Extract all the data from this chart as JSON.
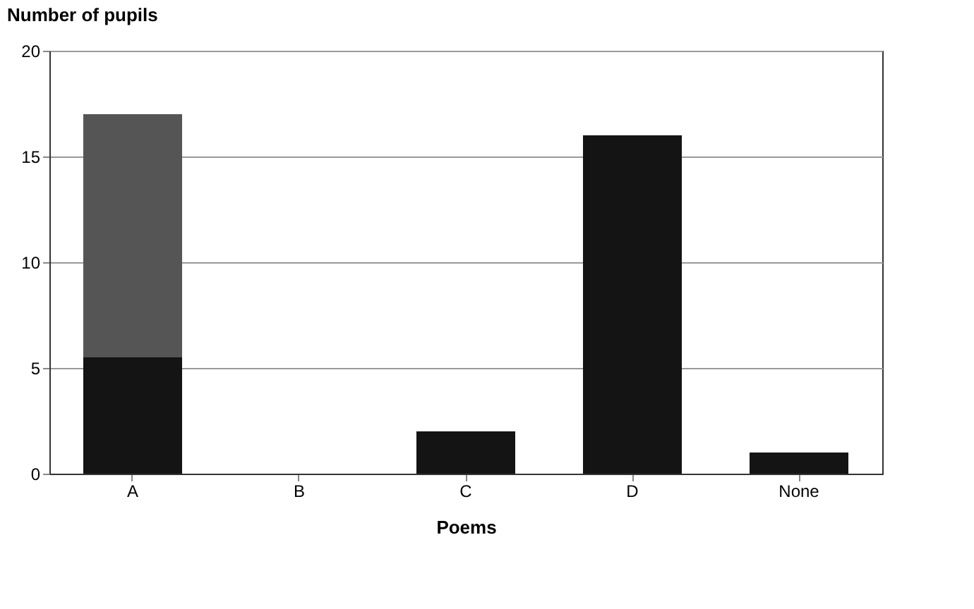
{
  "chart_data": {
    "type": "bar",
    "stacked": true,
    "ylabel": "Number of pupils",
    "xlabel": "Poems",
    "categories": [
      "A",
      "B",
      "C",
      "D",
      "None"
    ],
    "series": [
      {
        "color": "#141414",
        "values": [
          5.5,
          0,
          2,
          16,
          1
        ]
      },
      {
        "color": "#555555",
        "values": [
          11.5,
          0,
          0,
          0,
          0
        ]
      }
    ],
    "ylim": [
      0,
      20
    ],
    "yticks": [
      0,
      5,
      10,
      15,
      20
    ],
    "grid": "y",
    "legend": false
  }
}
